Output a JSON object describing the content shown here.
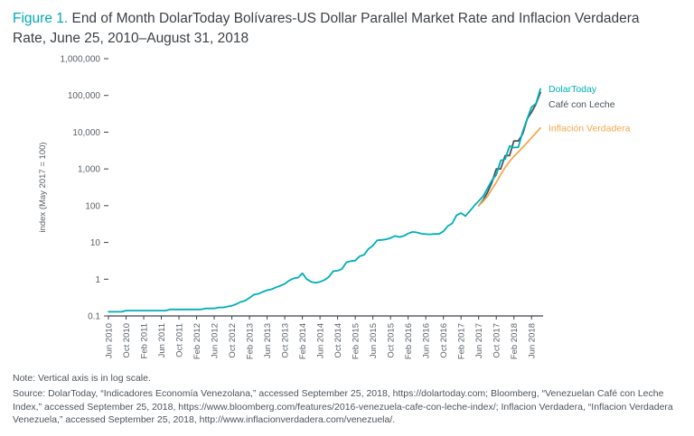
{
  "figure": {
    "title_prefix": "Figure 1.",
    "title_rest": " End of Month DolarToday Bolívares-US Dollar Parallel Market Rate and Inflacion Verdadera Rate, June 25, 2010–August 31, 2018",
    "note": "Note: Vertical axis is in log scale.",
    "source": "Source: DolarToday, “Indicadores Economía Venezolana,” accessed September 25, 2018, https://dolartoday.com; Bloomberg, “Venezuelan Café con Leche Index,” accessed September 25, 2018, https://www.bloomberg.com/features/2016-venezuela-cafe-con-leche-index/; Inflacion Verdadera, “Inflacion Verdadera Venezuela,” accessed September 25, 2018, http://www.inflacionverdadera.com/venezuela/."
  },
  "colors": {
    "accent_teal": "#00a9b8",
    "dark_slate": "#49525a",
    "orange": "#f5a74e",
    "axis": "#3c4147",
    "tick_label": "#5a6168"
  },
  "chart_data": {
    "type": "line",
    "title": "End of Month DolarToday Bolívares-US Dollar Parallel Market Rate and Inflacion Verdadera Rate, June 25, 2010–August 31, 2018",
    "xlabel": "",
    "ylabel": "index (May 2017 = 100)",
    "log_y": true,
    "ylim": [
      0.1,
      1000000
    ],
    "grid": false,
    "legend_position": "right-of-line-ends",
    "n_points": 99,
    "x_tick_every": 4,
    "x_tick_labels": [
      "Jun 2010",
      "Oct 2010",
      "Feb 2011",
      "Jun 2011",
      "Oct 2011",
      "Feb 2012",
      "Jun 2012",
      "Oct 2012",
      "Feb 2013",
      "Jun 2013",
      "Oct 2013",
      "Feb 2014",
      "Jun 2014",
      "Oct 2014",
      "Feb 2015",
      "Jun 2015",
      "Oct 2015",
      "Feb 2016",
      "Jun 2016",
      "Oct 2016",
      "Feb 2017",
      "Jun 2017",
      "Oct 2017",
      "Feb 2018",
      "Jun 2018"
    ],
    "y_ticks": [
      {
        "value": 1000000,
        "label": "1,000,000"
      },
      {
        "value": 100000,
        "label": "100,000"
      },
      {
        "value": 10000,
        "label": "10,000"
      },
      {
        "value": 1000,
        "label": "1,000"
      },
      {
        "value": 100,
        "label": "100"
      },
      {
        "value": 10,
        "label": "10"
      },
      {
        "value": 1,
        "label": "1"
      },
      {
        "value": 0.1,
        "label": "0.1"
      }
    ],
    "series": [
      {
        "name": "DolarToday",
        "color": "#00aeb8",
        "start": 0,
        "values": [
          0.13,
          0.13,
          0.13,
          0.13,
          0.14,
          0.14,
          0.14,
          0.14,
          0.14,
          0.14,
          0.14,
          0.14,
          0.14,
          0.14,
          0.15,
          0.15,
          0.15,
          0.15,
          0.15,
          0.15,
          0.15,
          0.15,
          0.16,
          0.16,
          0.16,
          0.17,
          0.17,
          0.18,
          0.19,
          0.21,
          0.24,
          0.26,
          0.31,
          0.38,
          0.4,
          0.45,
          0.5,
          0.53,
          0.6,
          0.66,
          0.75,
          0.92,
          1.05,
          1.1,
          1.45,
          1.0,
          0.85,
          0.8,
          0.85,
          0.95,
          1.15,
          1.65,
          1.7,
          1.9,
          2.9,
          3.1,
          3.2,
          4.2,
          4.6,
          6.7,
          8.2,
          11.5,
          11.7,
          12.2,
          13.2,
          15.0,
          14.0,
          15.0,
          17.5,
          19.3,
          18.7,
          17.3,
          16.8,
          16.6,
          17.0,
          17.0,
          20.0,
          28.0,
          33.0,
          55,
          63,
          52,
          72,
          100,
          133,
          180,
          295,
          490,
          690,
          1700,
          1850,
          4200,
          3800,
          3900,
          10500,
          23000,
          48000,
          60000,
          150000
        ]
      },
      {
        "name": "Café con Leche",
        "color": "#49525a",
        "start": 84,
        "values": [
          100,
          140,
          230,
          420,
          1000,
          1000,
          2300,
          2300,
          5800,
          5800,
          9000,
          23000,
          35000,
          58000,
          120000
        ]
      },
      {
        "name": "Inflación Verdadera",
        "color": "#f5a74e",
        "start": 84,
        "values": [
          100,
          130,
          180,
          280,
          430,
          700,
          1100,
          1600,
          2200,
          2900,
          3900,
          5200,
          7000,
          9500,
          13000
        ]
      }
    ]
  }
}
